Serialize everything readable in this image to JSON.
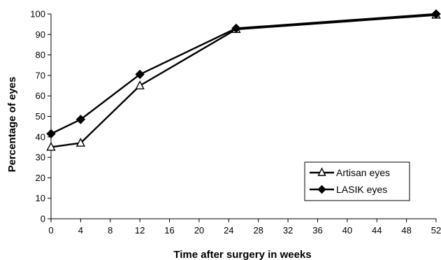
{
  "chart_data": {
    "type": "line",
    "title": "",
    "xlabel": "Time after surgery in weeks",
    "ylabel": "Percentage of eyes",
    "xlim": [
      0,
      52
    ],
    "ylim": [
      0,
      100
    ],
    "x_ticks": [
      "0",
      "4",
      "8",
      "12",
      "16",
      "20",
      "24",
      "28",
      "32",
      "36",
      "40",
      "44",
      "48",
      "52"
    ],
    "y_ticks": [
      "0",
      "10",
      "20",
      "30",
      "40",
      "50",
      "60",
      "70",
      "80",
      "90",
      "100"
    ],
    "grid": false,
    "legend_position": "bottom-right",
    "series": [
      {
        "name": "Artisan eyes",
        "marker": "open-triangle",
        "color": "#000000",
        "points": [
          [
            0,
            35
          ],
          [
            4,
            37
          ],
          [
            12,
            65
          ],
          [
            25,
            92.5
          ],
          [
            52,
            99.5
          ]
        ]
      },
      {
        "name": "LASIK eyes",
        "marker": "filled-diamond",
        "color": "#000000",
        "points": [
          [
            0,
            41.5
          ],
          [
            4,
            48.5
          ],
          [
            12,
            70.5
          ],
          [
            25,
            93
          ],
          [
            52,
            100
          ]
        ]
      }
    ]
  }
}
